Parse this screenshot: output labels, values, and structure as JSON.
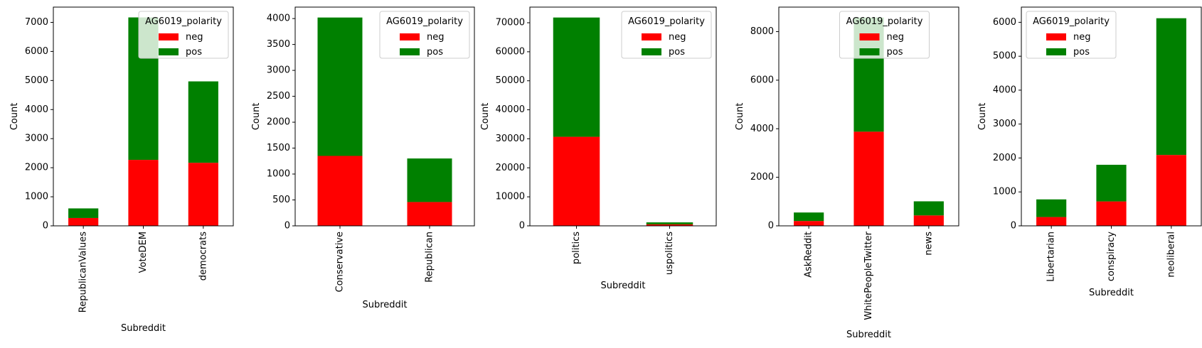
{
  "colors": {
    "neg": "#ff0000",
    "pos": "#008000",
    "axis": "#000000",
    "background": "#ffffff"
  },
  "chart_data": [
    {
      "type": "bar",
      "stacked": true,
      "categories": [
        "RepublicanValues",
        "VoteDEM",
        "democrats"
      ],
      "series": [
        {
          "name": "neg",
          "values": [
            270,
            2270,
            2170
          ]
        },
        {
          "name": "pos",
          "values": [
            330,
            4900,
            2800
          ]
        }
      ],
      "xlabel": "Subreddit",
      "ylabel": "Count",
      "ylim": [
        0,
        7525
      ],
      "yticks": [
        0,
        1000,
        2000,
        3000,
        4000,
        5000,
        6000,
        7000
      ],
      "ytick_labels": [
        "0",
        "1000",
        "2000",
        "3000",
        "4000",
        "5000",
        "6000",
        "7000"
      ],
      "legend": {
        "title": "AG6019_polarity",
        "entries": [
          "neg",
          "pos"
        ],
        "position": "top-right"
      }
    },
    {
      "type": "bar",
      "stacked": true,
      "categories": [
        "Conservative",
        "Republican"
      ],
      "series": [
        {
          "name": "neg",
          "values": [
            1350,
            460
          ]
        },
        {
          "name": "pos",
          "values": [
            2670,
            840
          ]
        }
      ],
      "xlabel": "Subreddit",
      "ylabel": "Count",
      "ylim": [
        0,
        4221
      ],
      "yticks": [
        0,
        500,
        1000,
        1500,
        2000,
        2500,
        3000,
        3500,
        4000
      ],
      "ytick_labels": [
        "0",
        "500",
        "1000",
        "1500",
        "2000",
        "2500",
        "3000",
        "3500",
        "4000"
      ],
      "legend": {
        "title": "AG6019_polarity",
        "entries": [
          "neg",
          "pos"
        ],
        "position": "top-right"
      }
    },
    {
      "type": "bar",
      "stacked": true,
      "categories": [
        "politics",
        "uspolitics"
      ],
      "series": [
        {
          "name": "neg",
          "values": [
            30700,
            500
          ]
        },
        {
          "name": "pos",
          "values": [
            41100,
            700
          ]
        }
      ],
      "xlabel": "Subreddit",
      "ylabel": "Count",
      "ylim": [
        0,
        75390
      ],
      "yticks": [
        0,
        10000,
        20000,
        30000,
        40000,
        50000,
        60000,
        70000
      ],
      "ytick_labels": [
        "0",
        "10000",
        "20000",
        "30000",
        "40000",
        "50000",
        "60000",
        "70000"
      ],
      "legend": {
        "title": "AG6019_polarity",
        "entries": [
          "neg",
          "pos"
        ],
        "position": "top-right"
      }
    },
    {
      "type": "bar",
      "stacked": true,
      "categories": [
        "AskReddit",
        "WhitePeopleTwitter",
        "news"
      ],
      "series": [
        {
          "name": "neg",
          "values": [
            200,
            3880,
            430
          ]
        },
        {
          "name": "pos",
          "values": [
            350,
            4700,
            580
          ]
        }
      ],
      "xlabel": "Subreddit",
      "ylabel": "Count",
      "ylim": [
        0,
        9010
      ],
      "yticks": [
        0,
        2000,
        4000,
        6000,
        8000
      ],
      "ytick_labels": [
        "0",
        "2000",
        "4000",
        "6000",
        "8000"
      ],
      "legend": {
        "title": "AG6019_polarity",
        "entries": [
          "neg",
          "pos"
        ],
        "position": "top-center"
      }
    },
    {
      "type": "bar",
      "stacked": true,
      "categories": [
        "Libertarian",
        "conspiracy",
        "neoliberal"
      ],
      "series": [
        {
          "name": "neg",
          "values": [
            260,
            720,
            2090
          ]
        },
        {
          "name": "pos",
          "values": [
            520,
            1080,
            4030
          ]
        }
      ],
      "xlabel": "Subreddit",
      "ylabel": "Count",
      "ylim": [
        0,
        6448
      ],
      "yticks": [
        0,
        1000,
        2000,
        3000,
        4000,
        5000,
        6000
      ],
      "ytick_labels": [
        "0",
        "1000",
        "2000",
        "3000",
        "4000",
        "5000",
        "6000"
      ],
      "legend": {
        "title": "AG6019_polarity",
        "entries": [
          "neg",
          "pos"
        ],
        "position": "top-left"
      }
    }
  ]
}
